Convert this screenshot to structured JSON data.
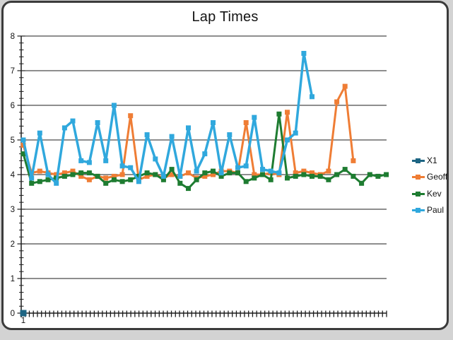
{
  "window": {
    "type": "chart-window"
  },
  "colors": {
    "axis": "#1c1c1c",
    "grid": "#1c1c1c",
    "text": "#111111",
    "window_border": "#3b3b3b",
    "background": "#ffffff",
    "desktop": "#d3d3d3"
  },
  "chart_data": {
    "type": "line",
    "title": "Lap Times",
    "xlabel": "",
    "ylabel": "",
    "ylim": [
      0,
      8
    ],
    "y_ticks": [
      0,
      1,
      2,
      3,
      4,
      5,
      6,
      7,
      8
    ],
    "x_categories_count": 45,
    "visible_x_tick_labels": [
      "1"
    ],
    "grid": "horizontal-major",
    "legend_position": "right",
    "legend_entries": [
      "X1",
      "Geoff",
      "Kev",
      "Paul"
    ],
    "series": [
      {
        "name": "X1",
        "color": "#1d6583",
        "start_x": 1,
        "values": [
          0
        ]
      },
      {
        "name": "Geoff",
        "color": "#ef7d35",
        "start_x": 1,
        "values": [
          4.85,
          4.05,
          4.1,
          4.05,
          4.0,
          4.05,
          4.1,
          3.95,
          3.85,
          3.95,
          3.9,
          3.95,
          4.0,
          5.7,
          3.85,
          3.95,
          4.0,
          3.9,
          4.0,
          3.95,
          4.05,
          3.9,
          3.95,
          4.0,
          4.1,
          4.1,
          4.05,
          5.5,
          4.0,
          4.0,
          4.05,
          4.0,
          5.8,
          4.05,
          4.1,
          4.05,
          4.0,
          4.1,
          6.1,
          6.55,
          4.4
        ]
      },
      {
        "name": "Kev",
        "color": "#1e7c31",
        "start_x": 1,
        "values": [
          4.6,
          3.75,
          3.8,
          3.85,
          3.9,
          3.95,
          4.0,
          4.05,
          4.05,
          3.95,
          3.75,
          3.85,
          3.8,
          3.85,
          3.95,
          4.05,
          4.0,
          3.85,
          4.15,
          3.75,
          3.6,
          3.85,
          4.05,
          4.1,
          3.95,
          4.05,
          4.05,
          3.8,
          3.9,
          4.0,
          3.85,
          5.75,
          3.9,
          3.95,
          4.0,
          3.95,
          3.95,
          3.85,
          4.0,
          4.15,
          3.95,
          3.75,
          4.0,
          3.95,
          4.0
        ]
      },
      {
        "name": "Paul",
        "color": "#30a8dd",
        "start_x": 1,
        "values": [
          5.0,
          3.9,
          5.2,
          4.0,
          3.75,
          5.35,
          5.55,
          4.4,
          4.35,
          5.5,
          4.4,
          6.0,
          4.25,
          4.2,
          3.8,
          5.15,
          4.45,
          3.95,
          5.1,
          3.95,
          5.35,
          4.1,
          4.6,
          5.5,
          4.05,
          5.15,
          4.2,
          4.25,
          5.65,
          4.15,
          4.1,
          4.05,
          5.0,
          5.2,
          7.5,
          6.25
        ]
      }
    ]
  }
}
